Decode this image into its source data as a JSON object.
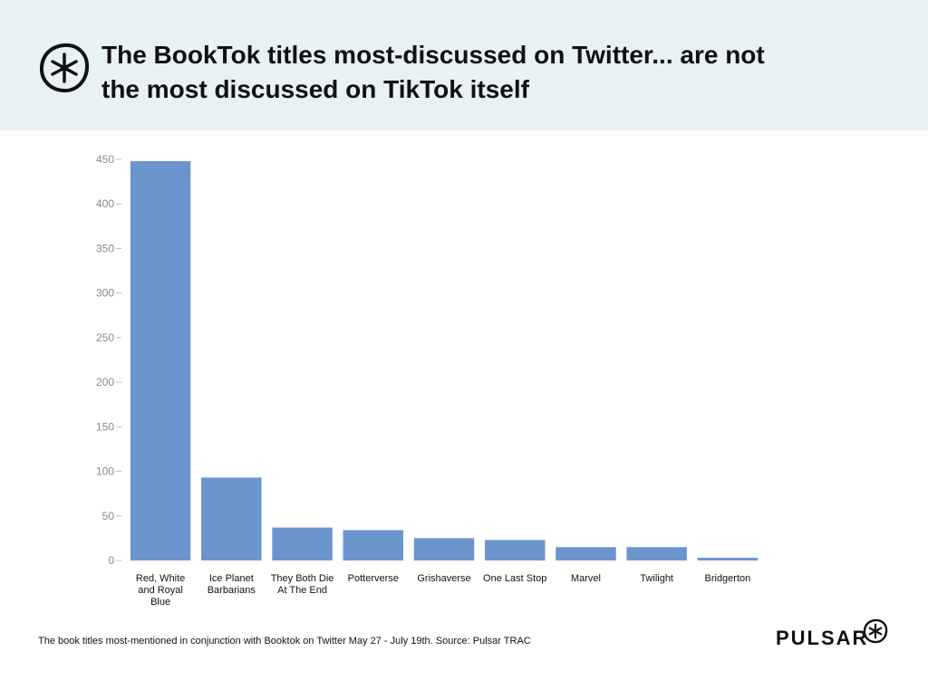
{
  "header": {
    "title_line1": "The BookTok titles most-discussed on Twitter... are not",
    "title_line2": "the most discussed on TikTok itself",
    "logo_icon": "asterisk-circle-icon"
  },
  "colors": {
    "bar": "#6d95cd",
    "header_bg": "#e8f1f3"
  },
  "chart_data": {
    "type": "bar",
    "title": "",
    "xlabel": "",
    "ylabel": "",
    "ylim": [
      0,
      450
    ],
    "yticks": [
      0,
      50,
      100,
      150,
      200,
      250,
      300,
      350,
      400,
      450
    ],
    "grid": false,
    "categories": [
      [
        "Red, White",
        "and Royal",
        "Blue"
      ],
      [
        "Ice Planet",
        "Barbarians"
      ],
      [
        "They Both Die",
        "At The End"
      ],
      [
        "Potterverse"
      ],
      [
        "Grishaverse"
      ],
      [
        "One Last Stop"
      ],
      [
        "Marvel"
      ],
      [
        "Twilight"
      ],
      [
        "Bridgerton"
      ]
    ],
    "values": [
      448,
      93,
      37,
      34,
      25,
      23,
      15,
      15,
      3
    ]
  },
  "footer": {
    "note": "The book titles most-mentioned in conjunction with Booktok on Twitter May 27 - July 19th. Source: Pulsar TRAC",
    "brand": "PULSAR",
    "brand_icon": "asterisk-circle-icon"
  }
}
